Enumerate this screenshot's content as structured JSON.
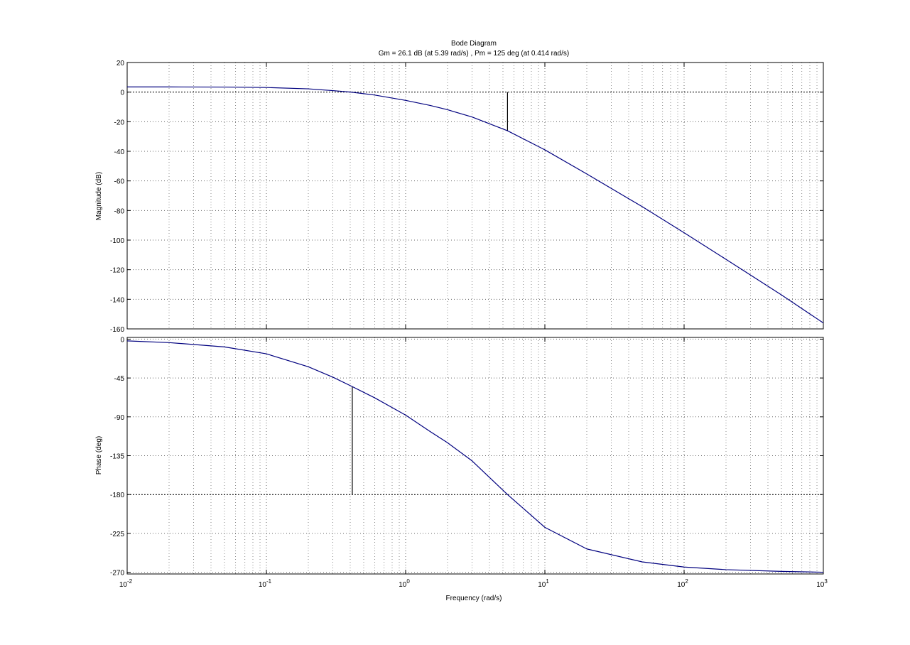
{
  "chart_data": {
    "type": "line",
    "title": "Bode Diagram",
    "subtitle": "Gm = 26.1 dB (at 5.39 rad/s) ,  Pm = 125 deg (at 0.414 rad/s)",
    "xlabel": "Frequency  (rad/s)",
    "xscale": "log",
    "xlim": [
      0.01,
      1000
    ],
    "x_tick_labels": [
      {
        "base": "10",
        "exp": "-2"
      },
      {
        "base": "10",
        "exp": "-1"
      },
      {
        "base": "10",
        "exp": "0"
      },
      {
        "base": "10",
        "exp": "1"
      },
      {
        "base": "10",
        "exp": "2"
      },
      {
        "base": "10",
        "exp": "3"
      }
    ],
    "grid": true,
    "line_color": "#00007f",
    "marker_color": "#000000",
    "subplots": [
      {
        "ylabel": "Magnitude (dB)",
        "ylim": [
          -160,
          20
        ],
        "yticks": [
          20,
          0,
          -20,
          -40,
          -60,
          -80,
          -100,
          -120,
          -140,
          -160
        ],
        "ytick_labels": [
          "20",
          "0",
          "-20",
          "-40",
          "-60",
          "-80",
          "-100",
          "-120",
          "-140",
          "-160"
        ],
        "reference_line": 0,
        "margin_marker": {
          "x": 5.39,
          "y_from": 0,
          "y_to": -26.1
        },
        "series": [
          {
            "x": [
              0.01,
              0.02,
              0.05,
              0.1,
              0.2,
              0.3,
              0.414,
              0.6,
              1,
              1.5,
              2,
              3,
              5.39,
              10,
              20,
              50,
              100,
              200,
              500,
              1000
            ],
            "values": [
              3.5,
              3.5,
              3.4,
              3.1,
              2.2,
              1.0,
              -0.1,
              -2.0,
              -5.6,
              -9.0,
              -11.9,
              -16.8,
              -26.1,
              -39.0,
              -55.3,
              -77.4,
              -95.0,
              -113.0,
              -137.0,
              -156.0
            ]
          }
        ]
      },
      {
        "ylabel": "Phase (deg)",
        "ylim": [
          -272,
          2
        ],
        "yticks": [
          0,
          -45,
          -90,
          -135,
          -180,
          -225,
          -270
        ],
        "ytick_labels": [
          "0",
          "-45",
          "-90",
          "-135",
          "-180",
          "-225",
          "-270"
        ],
        "reference_line": -180,
        "margin_marker": {
          "x": 0.414,
          "y_from": -180,
          "y_to": -55
        },
        "series": [
          {
            "x": [
              0.01,
              0.02,
              0.05,
              0.1,
              0.2,
              0.3,
              0.414,
              0.6,
              1,
              1.5,
              2,
              3,
              5.39,
              10,
              20,
              50,
              100,
              200,
              500,
              1000
            ],
            "values": [
              -2,
              -4,
              -9,
              -17,
              -32,
              -44,
              -55,
              -68,
              -88,
              -107,
              -120,
              -141,
              -180,
              -218,
              -243,
              -258,
              -264,
              -267,
              -269,
              -270
            ]
          }
        ]
      }
    ]
  }
}
